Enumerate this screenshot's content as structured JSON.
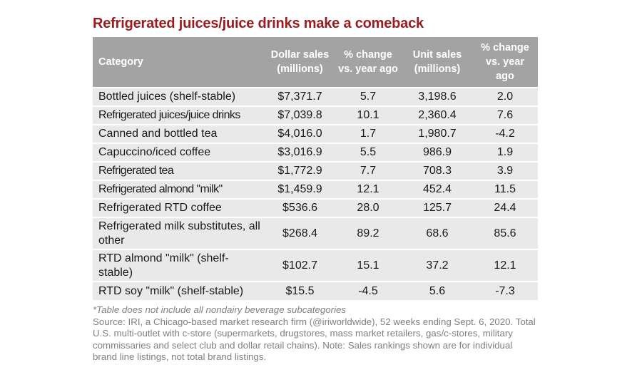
{
  "title": "Refrigerated juices/juice drinks make a comeback",
  "chart_data": {
    "type": "table",
    "columns": [
      "Category",
      "Dollar sales (millions)",
      "% change vs. year ago",
      "Unit sales (millions)",
      "% change vs. year ago"
    ],
    "rows": [
      {
        "category": "Bottled juices (shelf-stable)",
        "dollar_sales": "$7,371.7",
        "dollar_change": "5.7",
        "unit_sales": "3,198.6",
        "unit_change": "2.0"
      },
      {
        "category": "Refrigerated juices/juice drinks",
        "dollar_sales": "$7,039.8",
        "dollar_change": "10.1",
        "unit_sales": "2,360.4",
        "unit_change": "7.6"
      },
      {
        "category": "Canned and bottled tea",
        "dollar_sales": "$4,016.0",
        "dollar_change": "1.7",
        "unit_sales": "1,980.7",
        "unit_change": "-4.2"
      },
      {
        "category": "Capuccino/iced coffee",
        "dollar_sales": "$3,016.9",
        "dollar_change": "5.5",
        "unit_sales": "986.9",
        "unit_change": "1.9"
      },
      {
        "category": "Refrigerated tea",
        "dollar_sales": "$1,772.9",
        "dollar_change": "7.7",
        "unit_sales": "708.3",
        "unit_change": "3.9"
      },
      {
        "category": "Refrigerated almond \"milk\"",
        "dollar_sales": "$1,459.9",
        "dollar_change": "12.1",
        "unit_sales": "452.4",
        "unit_change": "11.5"
      },
      {
        "category": "Refrigerated RTD coffee",
        "dollar_sales": "$536.6",
        "dollar_change": "28.0",
        "unit_sales": "125.7",
        "unit_change": "24.4"
      },
      {
        "category": "Refrigerated milk substitutes, all other",
        "dollar_sales": "$268.4",
        "dollar_change": "89.2",
        "unit_sales": "68.6",
        "unit_change": "85.6"
      },
      {
        "category": "RTD almond \"milk\" (shelf-stable)",
        "dollar_sales": "$102.7",
        "dollar_change": "15.1",
        "unit_sales": "37.2",
        "unit_change": "12.1"
      },
      {
        "category": "RTD soy \"milk\" (shelf-stable)",
        "dollar_sales": "$15.5",
        "dollar_change": "-4.5",
        "unit_sales": "5.6",
        "unit_change": "-7.3"
      }
    ]
  },
  "notes": {
    "asterisk": "*Table does not include all nondairy beverage subcategories",
    "source": "Source: IRI, a Chicago-based market research firm (@iriworldwide), 52 weeks ending Sept. 6, 2020. Total U.S. multi-outlet with c-store (supermarkets, drugstores, mass market retailers, gas/c-stores, military commissaries and select club and dollar retail chains). Note: Sales rankings shown are for individual brand line listings, not total brand listings."
  }
}
